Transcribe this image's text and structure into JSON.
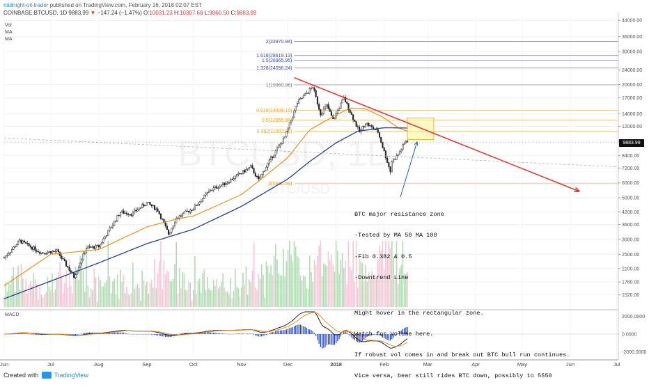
{
  "header": {
    "user": "midnight-oil-trader",
    "published_text": "published on TradingView.com, February 16, 2018 02:07 EST"
  },
  "symbol_line": {
    "symbol": "COINBASE:BTCUSD, 1D",
    "last": "9883.99",
    "change": "−147.24 (−1.47%)",
    "open_label": "O:",
    "open": "10031.23",
    "high_label": "H:",
    "high": "10307.68",
    "low_label": "L:",
    "low": "9860.50",
    "close_label": "C:",
    "close": "9883.99"
  },
  "legend_items": [
    "Vol",
    "MA",
    "MA"
  ],
  "watermark": {
    "symbol": "BTCUSD, 1D",
    "pair": "BTC/USD"
  },
  "macd_label": "MACD",
  "last_price_tag": "9883.99",
  "annotation": {
    "lines": [
      "BTC major resistance zone",
      "-Tested by MA 50 MA 100",
      "-Fib 0.382 & 0.5",
      "-Downtrend Line",
      "",
      "Might hover in the rectangular zone.",
      "Watch for Volume here.",
      "If robust vol comes in and break out BTC bull run continues.",
      "Vice versa, bear still rides BTC down, possibly to 5550"
    ]
  },
  "footer": {
    "created_with": "Created with",
    "brand": "TradingView"
  },
  "colors": {
    "bull": "#26a69a",
    "bear": "#ef5350",
    "ma50": "#f0901a",
    "ma100": "#1f3f9a",
    "trendline": "#e53935",
    "fib_blue": "#3949ab",
    "fib_orange": "#f0a030",
    "zone_fill": "#fff59d",
    "zone_border": "#e0b000",
    "arrow": "#1e5fb4",
    "vol_up": "#a5d6a7",
    "vol_down": "#f8bbd0",
    "macd_line": "#222222",
    "signal_line": "#f0901a",
    "hist": "#1f3fbf"
  },
  "chart_data": {
    "type": "candlestick",
    "price_axis": {
      "scale": "log",
      "range": [
        1300,
        46000
      ],
      "ticks": [
        1520,
        1780,
        2100,
        2500,
        3000,
        3600,
        4200,
        5000,
        6000,
        7200,
        8400,
        10000,
        12000,
        14000,
        17000,
        20000,
        24000,
        30000,
        36000,
        44000
      ]
    },
    "macd_axis": {
      "range": [
        -2500,
        2500
      ],
      "ticks": [
        2000,
        0,
        -2000
      ],
      "tick_labels": [
        "2000.0000",
        "0.0000",
        "-2000.0000"
      ]
    },
    "x_axis": {
      "start": "2017-06-01",
      "end": "2018-07-02",
      "labels": [
        {
          "text": "Jun",
          "date": "2017-06-01"
        },
        {
          "text": "Jul",
          "date": "2017-07-01"
        },
        {
          "text": "Aug",
          "date": "2017-08-01"
        },
        {
          "text": "Sep",
          "date": "2017-09-01"
        },
        {
          "text": "Oct",
          "date": "2017-10-01"
        },
        {
          "text": "Nov",
          "date": "2017-11-01"
        },
        {
          "text": "Dec",
          "date": "2017-12-01"
        },
        {
          "text": "2018",
          "date": "2018-01-01"
        },
        {
          "text": "Feb",
          "date": "2018-02-01"
        },
        {
          "text": "Mar",
          "date": "2018-03-01"
        },
        {
          "text": "Apr",
          "date": "2018-04-01"
        },
        {
          "text": "May",
          "date": "2018-05-01"
        },
        {
          "text": "Jun",
          "date": "2018-06-01"
        },
        {
          "text": "Jul",
          "date": "2018-07-01"
        }
      ]
    },
    "price_anchors": [
      [
        "2017-06-01",
        2400
      ],
      [
        "2017-06-11",
        2950
      ],
      [
        "2017-06-25",
        2550
      ],
      [
        "2017-07-05",
        2600
      ],
      [
        "2017-07-16",
        1900
      ],
      [
        "2017-07-24",
        2700
      ],
      [
        "2017-08-01",
        2750
      ],
      [
        "2017-08-15",
        4200
      ],
      [
        "2017-08-22",
        4100
      ],
      [
        "2017-09-01",
        4700
      ],
      [
        "2017-09-08",
        4300
      ],
      [
        "2017-09-15",
        3200
      ],
      [
        "2017-09-20",
        3900
      ],
      [
        "2017-10-01",
        4400
      ],
      [
        "2017-10-12",
        5500
      ],
      [
        "2017-10-22",
        6000
      ],
      [
        "2017-11-07",
        7300
      ],
      [
        "2017-11-12",
        6200
      ],
      [
        "2017-11-20",
        8100
      ],
      [
        "2017-11-29",
        10500
      ],
      [
        "2017-12-07",
        16000
      ],
      [
        "2017-12-17",
        19500
      ],
      [
        "2017-12-22",
        14000
      ],
      [
        "2017-12-26",
        15500
      ],
      [
        "2017-12-30",
        13000
      ],
      [
        "2018-01-06",
        17000
      ],
      [
        "2018-01-16",
        11200
      ],
      [
        "2018-01-20",
        12500
      ],
      [
        "2018-01-28",
        11200
      ],
      [
        "2018-02-05",
        6900
      ],
      [
        "2018-02-06",
        7800
      ],
      [
        "2018-02-10",
        8500
      ],
      [
        "2018-02-15",
        10050
      ],
      [
        "2018-02-16",
        9884
      ]
    ],
    "ma50_anchors": [
      [
        "2017-06-01",
        1700
      ],
      [
        "2017-07-01",
        2500
      ],
      [
        "2017-08-01",
        2650
      ],
      [
        "2017-09-01",
        3500
      ],
      [
        "2017-09-20",
        3850
      ],
      [
        "2017-10-01",
        4000
      ],
      [
        "2017-10-15",
        4500
      ],
      [
        "2017-11-01",
        5200
      ],
      [
        "2017-11-15",
        6400
      ],
      [
        "2017-12-01",
        8200
      ],
      [
        "2017-12-15",
        11500
      ],
      [
        "2018-01-01",
        13800
      ],
      [
        "2018-01-10",
        15000
      ],
      [
        "2018-01-20",
        14900
      ],
      [
        "2018-02-01",
        13300
      ],
      [
        "2018-02-10",
        11800
      ],
      [
        "2018-02-16",
        11300
      ]
    ],
    "ma100_anchors": [
      [
        "2017-06-01",
        1450
      ],
      [
        "2017-07-01",
        1800
      ],
      [
        "2017-08-01",
        2250
      ],
      [
        "2017-09-01",
        2850
      ],
      [
        "2017-10-01",
        3400
      ],
      [
        "2017-11-01",
        4500
      ],
      [
        "2017-12-01",
        6300
      ],
      [
        "2017-12-15",
        7800
      ],
      [
        "2018-01-01",
        9800
      ],
      [
        "2018-01-15",
        11300
      ],
      [
        "2018-02-01",
        11800
      ],
      [
        "2018-02-16",
        11750
      ]
    ],
    "fib_levels": [
      {
        "label": "2(33970.94)",
        "value": 33970.94,
        "group": "blue"
      },
      {
        "label": "1.618(28619.13)",
        "value": 28619.13,
        "group": "blue"
      },
      {
        "label": "1.5(26965.95)",
        "value": 26965.95,
        "group": "blue"
      },
      {
        "label": "1.328(24556.24)",
        "value": 24556.24,
        "group": "blue"
      },
      {
        "label": "1(19960.96)",
        "value": 19960.96,
        "group": "grey"
      },
      {
        "label": "0.618(14609.15)",
        "value": 14609.15,
        "group": "orange"
      },
      {
        "label": "0.5(12955.98)",
        "value": 12955.98,
        "group": "orange"
      },
      {
        "label": "0.382(11302.80)",
        "value": 11302.8,
        "group": "orange"
      },
      {
        "label": "0(5950.98)",
        "value": 5950.98,
        "group": "orange"
      }
    ],
    "downtrend_line": {
      "from": [
        "2017-12-05",
        21800
      ],
      "to": [
        "2018-06-07",
        5400
      ]
    },
    "dashed_line": {
      "from": [
        "2017-06-01",
        10400
      ],
      "to": [
        "2018-07-02",
        7300
      ]
    },
    "resistance_zone": {
      "date_from": "2018-02-16",
      "date_to": "2018-03-05",
      "price_low": 10200,
      "price_high": 13300
    }
  }
}
